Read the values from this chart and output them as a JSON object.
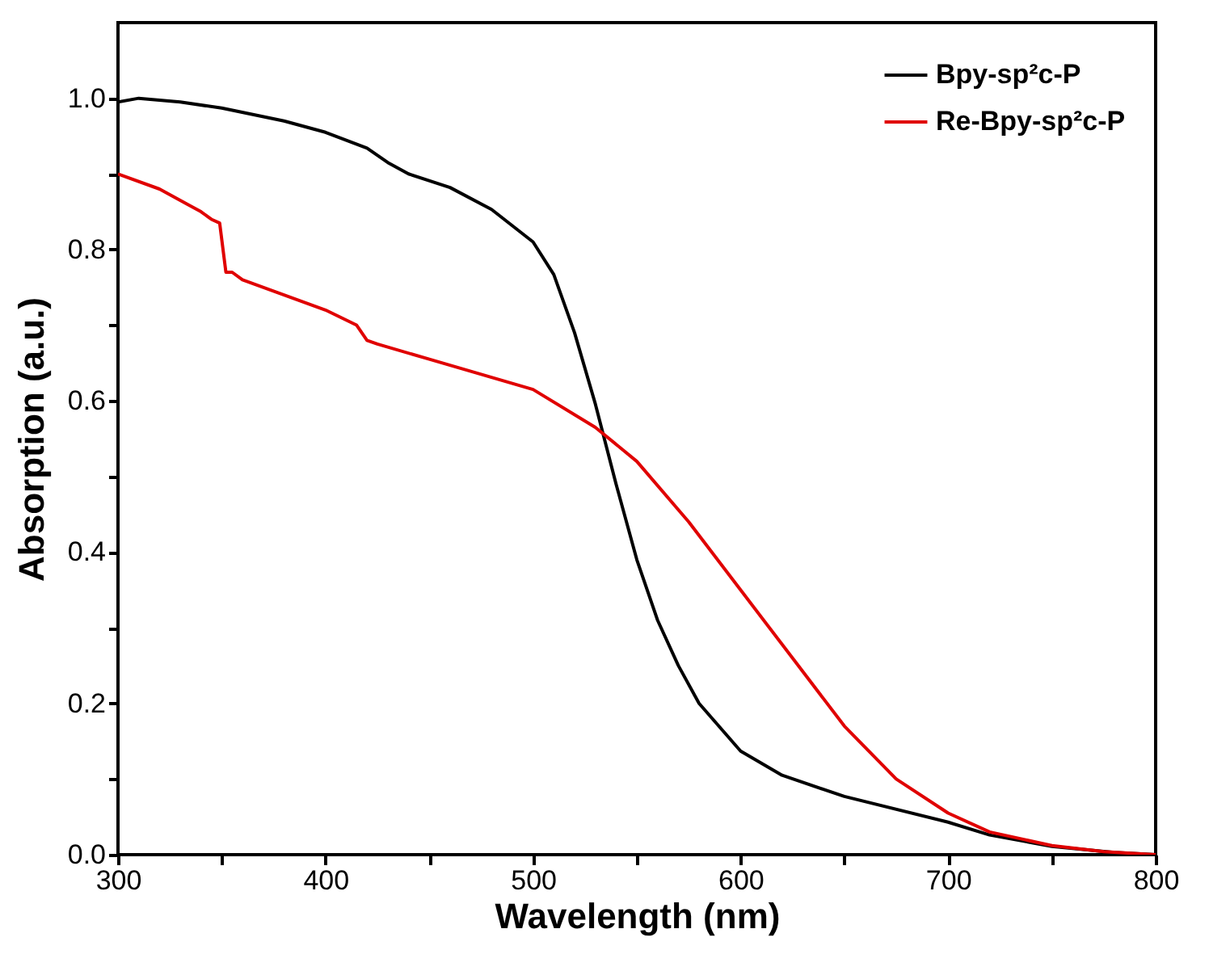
{
  "chart_data": {
    "type": "line",
    "xlabel": "Wavelength (nm)",
    "ylabel": "Absorption (a.u.)",
    "xlim": [
      300,
      800
    ],
    "ylim": [
      0,
      1.1
    ],
    "xticks": [
      300,
      {
        "value": 350,
        "label": null
      },
      400,
      {
        "value": 450,
        "label": null
      },
      500,
      {
        "value": 550,
        "label": null
      },
      600,
      {
        "value": 650,
        "label": null
      },
      700,
      {
        "value": 750,
        "label": null
      },
      800
    ],
    "yticks": [
      {
        "value": 0,
        "label": "0.0"
      },
      {
        "value": 0.1,
        "label": null
      },
      0.2,
      {
        "value": 0.3,
        "label": null
      },
      0.4,
      {
        "value": 0.5,
        "label": null
      },
      0.6,
      {
        "value": 0.7,
        "label": null
      },
      0.8,
      {
        "value": 0.9,
        "label": null
      },
      {
        "value": 1,
        "label": "1.0"
      }
    ],
    "legend": "top right",
    "grid": false,
    "line_style": "solid",
    "marker": "none",
    "series": [
      {
        "name": "Bpy-sp²c-P",
        "color": "#000000",
        "x": [
          300,
          310,
          330,
          350,
          380,
          400,
          420,
          430,
          440,
          460,
          480,
          500,
          510,
          520,
          530,
          540,
          550,
          560,
          570,
          580,
          600,
          620,
          650,
          700,
          720,
          750,
          780,
          800
        ],
        "values": [
          0.995,
          1.0,
          0.995,
          0.987,
          0.97,
          0.955,
          0.934,
          0.915,
          0.9,
          0.882,
          0.853,
          0.81,
          0.767,
          0.69,
          0.596,
          0.49,
          0.39,
          0.31,
          0.25,
          0.2,
          0.137,
          0.105,
          0.077,
          0.043,
          0.026,
          0.011,
          0.003,
          0.0
        ]
      },
      {
        "name": "Re-Bpy-sp²c-P",
        "color": "#e00000",
        "x": [
          300,
          320,
          340,
          345,
          349,
          352,
          355,
          360,
          380,
          400,
          415,
          420,
          425,
          450,
          500,
          530,
          550,
          575,
          600,
          625,
          650,
          675,
          700,
          720,
          750,
          775,
          800
        ],
        "values": [
          0.9,
          0.88,
          0.85,
          0.84,
          0.835,
          0.77,
          0.77,
          0.76,
          0.74,
          0.72,
          0.7,
          0.68,
          0.675,
          0.655,
          0.615,
          0.565,
          0.52,
          0.44,
          0.35,
          0.26,
          0.17,
          0.1,
          0.055,
          0.03,
          0.012,
          0.004,
          0.0
        ]
      }
    ]
  }
}
